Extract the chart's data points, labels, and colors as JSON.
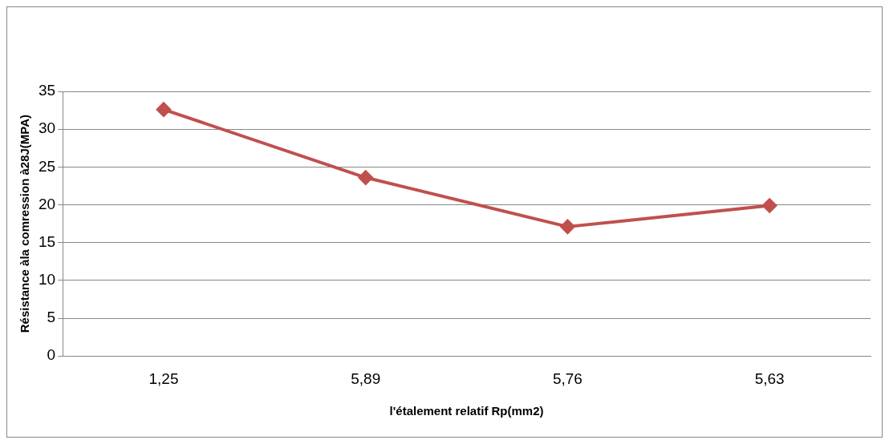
{
  "chart_data": {
    "type": "line",
    "xlabel": "l'étalement relatif Rp(mm2)",
    "ylabel": "Résistance àla comression à28J(MPA)",
    "categories": [
      "1,25",
      "5,89",
      "5,76",
      "5,63"
    ],
    "series": [
      {
        "color": "#c0504d",
        "values": [
          32.6,
          23.6,
          17.1,
          19.9
        ]
      }
    ],
    "ylim": [
      0,
      35
    ],
    "yticks": [
      0,
      5,
      10,
      15,
      20,
      25,
      30,
      35
    ],
    "grid": "y",
    "legend": false,
    "marker": "diamond",
    "line_style": "solid"
  }
}
